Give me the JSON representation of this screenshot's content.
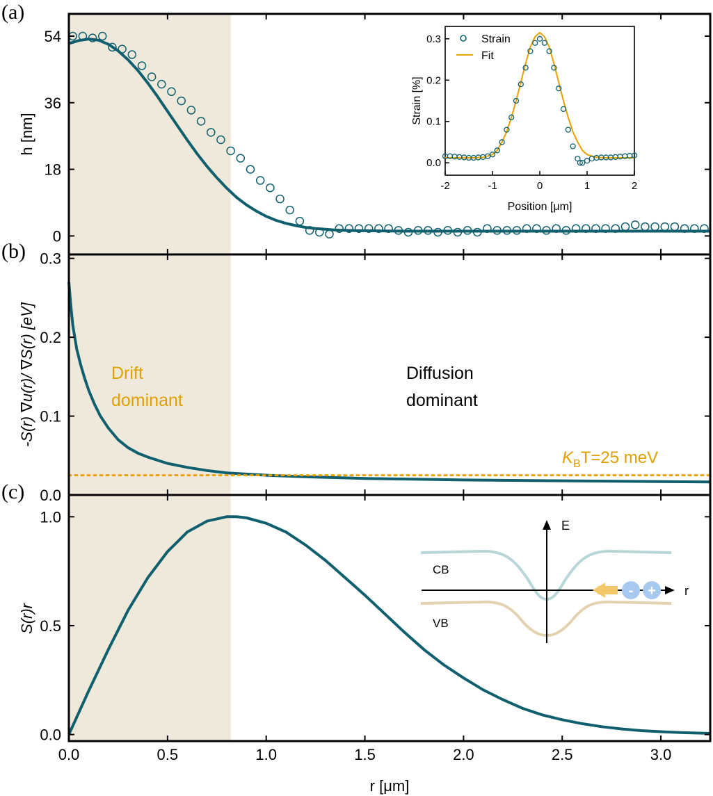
{
  "panel_labels": {
    "a": "(a)",
    "b": "(b)",
    "c": "(c)"
  },
  "colors": {
    "teal": "#0f5f6e",
    "orange": "#e8a200",
    "shade": "#efe9db",
    "cb": "#b7d6d8",
    "vb": "#e3d2b0",
    "carrier": "#a8c9ef"
  },
  "chart_data": [
    {
      "id": "a",
      "type": "scatter",
      "xlabel": "",
      "ylabel": "h [nm]",
      "xlim": [
        0,
        3.25
      ],
      "ylim": [
        -5,
        60
      ],
      "yticks": [
        0,
        18,
        36,
        54
      ],
      "series": [
        {
          "name": "",
          "kind": "markers",
          "x": [
            0.02,
            0.07,
            0.12,
            0.17,
            0.22,
            0.27,
            0.32,
            0.37,
            0.42,
            0.47,
            0.52,
            0.57,
            0.62,
            0.67,
            0.72,
            0.77,
            0.82,
            0.87,
            0.92,
            0.97,
            1.02,
            1.07,
            1.12,
            1.17,
            1.22,
            1.27,
            1.32,
            1.37,
            1.42,
            1.47,
            1.52,
            1.57,
            1.62,
            1.67,
            1.72,
            1.77,
            1.82,
            1.87,
            1.92,
            1.97,
            2.02,
            2.07,
            2.12,
            2.17,
            2.22,
            2.27,
            2.32,
            2.37,
            2.42,
            2.47,
            2.52,
            2.57,
            2.62,
            2.67,
            2.72,
            2.77,
            2.82,
            2.87,
            2.92,
            2.97,
            3.02,
            3.07,
            3.12,
            3.17,
            3.22
          ],
          "y": [
            54,
            54,
            53.5,
            54,
            51,
            50.5,
            49,
            46,
            43,
            41,
            39,
            36.5,
            34,
            31,
            28,
            26,
            23,
            21,
            18,
            15,
            13,
            10,
            7,
            4,
            1.5,
            1,
            0.5,
            2,
            2,
            2,
            2,
            2,
            2,
            1.5,
            1,
            1.5,
            1.5,
            1,
            1.5,
            1,
            1.5,
            1,
            2,
            1.5,
            1.5,
            1.5,
            2,
            2,
            1.5,
            2,
            1.5,
            2,
            2,
            2,
            2,
            2,
            2.5,
            3,
            2.5,
            2.5,
            2.5,
            2.5,
            2,
            2,
            2
          ]
        },
        {
          "name": "",
          "kind": "line",
          "x": [
            0,
            0.05,
            0.1,
            0.15,
            0.2,
            0.25,
            0.3,
            0.35,
            0.4,
            0.45,
            0.5,
            0.55,
            0.6,
            0.65,
            0.7,
            0.75,
            0.8,
            0.85,
            0.9,
            0.95,
            1.0,
            1.05,
            1.1,
            1.15,
            1.2,
            1.25,
            1.3,
            1.35,
            1.4,
            1.45,
            1.5,
            1.6,
            1.7,
            1.8,
            2.0,
            2.5,
            3.0,
            3.25
          ],
          "y": [
            52,
            52.8,
            53.2,
            52.9,
            51.8,
            50,
            47.6,
            44.7,
            41.3,
            37.6,
            33.7,
            29.8,
            25.9,
            22.2,
            18.8,
            15.7,
            12.9,
            10.4,
            8.4,
            6.7,
            5.3,
            4.2,
            3.4,
            2.8,
            2.3,
            2.0,
            1.8,
            1.6,
            1.5,
            1.45,
            1.4,
            1.35,
            1.3,
            1.3,
            1.3,
            1.3,
            1.3,
            1.3
          ]
        }
      ]
    },
    {
      "id": "a-inset",
      "type": "scatter",
      "xlabel": "Position [μm]",
      "ylabel": "Strain [%]",
      "xlim": [
        -2,
        2
      ],
      "ylim": [
        -0.03,
        0.33
      ],
      "xticks": [
        -2,
        -1,
        0,
        1,
        2
      ],
      "yticks": [
        0.0,
        0.1,
        0.2,
        0.3
      ],
      "legend": "top-left",
      "series": [
        {
          "name": "Strain",
          "kind": "markers",
          "x": [
            -2.0,
            -1.9,
            -1.8,
            -1.7,
            -1.6,
            -1.5,
            -1.4,
            -1.3,
            -1.2,
            -1.1,
            -1.0,
            -0.9,
            -0.8,
            -0.7,
            -0.6,
            -0.5,
            -0.4,
            -0.3,
            -0.2,
            -0.1,
            0.0,
            0.1,
            0.2,
            0.3,
            0.4,
            0.5,
            0.6,
            0.7,
            0.8,
            0.85,
            0.9,
            1.0,
            1.1,
            1.2,
            1.3,
            1.4,
            1.5,
            1.6,
            1.7,
            1.8,
            1.9,
            2.0
          ],
          "y": [
            0.016,
            0.016,
            0.015,
            0.014,
            0.013,
            0.012,
            0.012,
            0.013,
            0.014,
            0.016,
            0.02,
            0.03,
            0.05,
            0.08,
            0.11,
            0.15,
            0.19,
            0.23,
            0.27,
            0.29,
            0.3,
            0.29,
            0.27,
            0.23,
            0.18,
            0.13,
            0.08,
            0.04,
            0.01,
            0.0,
            0.0,
            0.005,
            0.01,
            0.012,
            0.013,
            0.013,
            0.013,
            0.014,
            0.015,
            0.016,
            0.017,
            0.018
          ]
        },
        {
          "name": "Fit",
          "kind": "line",
          "x": [
            -2.0,
            -1.8,
            -1.6,
            -1.4,
            -1.2,
            -1.0,
            -0.9,
            -0.8,
            -0.7,
            -0.6,
            -0.5,
            -0.4,
            -0.3,
            -0.2,
            -0.1,
            0.0,
            0.1,
            0.2,
            0.3,
            0.4,
            0.5,
            0.6,
            0.7,
            0.8,
            0.9,
            1.0,
            1.2,
            1.4,
            1.6,
            1.8,
            2.0
          ],
          "y": [
            0.012,
            0.012,
            0.012,
            0.012,
            0.013,
            0.02,
            0.03,
            0.05,
            0.075,
            0.11,
            0.15,
            0.195,
            0.24,
            0.28,
            0.305,
            0.315,
            0.305,
            0.28,
            0.24,
            0.195,
            0.15,
            0.11,
            0.075,
            0.05,
            0.03,
            0.02,
            0.013,
            0.012,
            0.012,
            0.012,
            0.012
          ]
        }
      ]
    },
    {
      "id": "b",
      "type": "line",
      "xlabel": "",
      "ylabel": "-S(r) ∇u(r)/ ∇S(r) [eV]",
      "xlim": [
        0,
        3.25
      ],
      "ylim": [
        0,
        0.305
      ],
      "yticks": [
        0.0,
        0.1,
        0.2,
        0.3
      ],
      "series": [
        {
          "name": "",
          "kind": "line",
          "x": [
            0,
            0.01,
            0.02,
            0.04,
            0.06,
            0.08,
            0.1,
            0.13,
            0.16,
            0.2,
            0.25,
            0.3,
            0.35,
            0.4,
            0.5,
            0.6,
            0.7,
            0.8,
            1.0,
            1.2,
            1.5,
            2.0,
            2.5,
            3.0,
            3.25
          ],
          "y": [
            0.27,
            0.24,
            0.215,
            0.185,
            0.165,
            0.148,
            0.133,
            0.115,
            0.1,
            0.085,
            0.07,
            0.06,
            0.053,
            0.048,
            0.04,
            0.035,
            0.031,
            0.028,
            0.025,
            0.023,
            0.021,
            0.019,
            0.018,
            0.017,
            0.0165
          ]
        },
        {
          "name": "",
          "kind": "dotted-line",
          "x": [
            0,
            3.25
          ],
          "y": [
            0.025,
            0.025
          ]
        }
      ],
      "annotations": {
        "drift": [
          "Drift",
          "dominant"
        ],
        "diffusion": [
          "Diffusion",
          "dominant"
        ],
        "kbt_k": "K",
        "kbt_sub": "B",
        "kbt_rest": "T=25 meV"
      }
    },
    {
      "id": "c",
      "type": "line",
      "xlabel": "r [μm]",
      "ylabel": "S(r)r",
      "xlim": [
        0,
        3.25
      ],
      "ylim": [
        -0.03,
        1.1
      ],
      "xticks": [
        0.0,
        0.5,
        1.0,
        1.5,
        2.0,
        2.5,
        3.0
      ],
      "yticks": [
        0.0,
        0.5,
        1.0
      ],
      "shaded_region": [
        0,
        0.82
      ],
      "series": [
        {
          "name": "",
          "kind": "line",
          "x": [
            0,
            0.1,
            0.2,
            0.3,
            0.4,
            0.5,
            0.6,
            0.7,
            0.8,
            0.85,
            0.9,
            1.0,
            1.1,
            1.2,
            1.3,
            1.4,
            1.5,
            1.6,
            1.7,
            1.8,
            1.9,
            2.0,
            2.1,
            2.2,
            2.3,
            2.4,
            2.5,
            2.6,
            2.7,
            2.8,
            2.9,
            3.0,
            3.1,
            3.25
          ],
          "y": [
            0.0,
            0.2,
            0.39,
            0.57,
            0.72,
            0.84,
            0.93,
            0.98,
            1.0,
            1.0,
            0.995,
            0.97,
            0.93,
            0.87,
            0.8,
            0.72,
            0.64,
            0.555,
            0.47,
            0.39,
            0.32,
            0.26,
            0.205,
            0.16,
            0.12,
            0.09,
            0.068,
            0.05,
            0.036,
            0.026,
            0.018,
            0.013,
            0.009,
            0.005
          ]
        }
      ],
      "inset": {
        "e": "E",
        "cb": "CB",
        "vb": "VB",
        "r": "r",
        "minus": "-",
        "plus": "+"
      }
    }
  ]
}
